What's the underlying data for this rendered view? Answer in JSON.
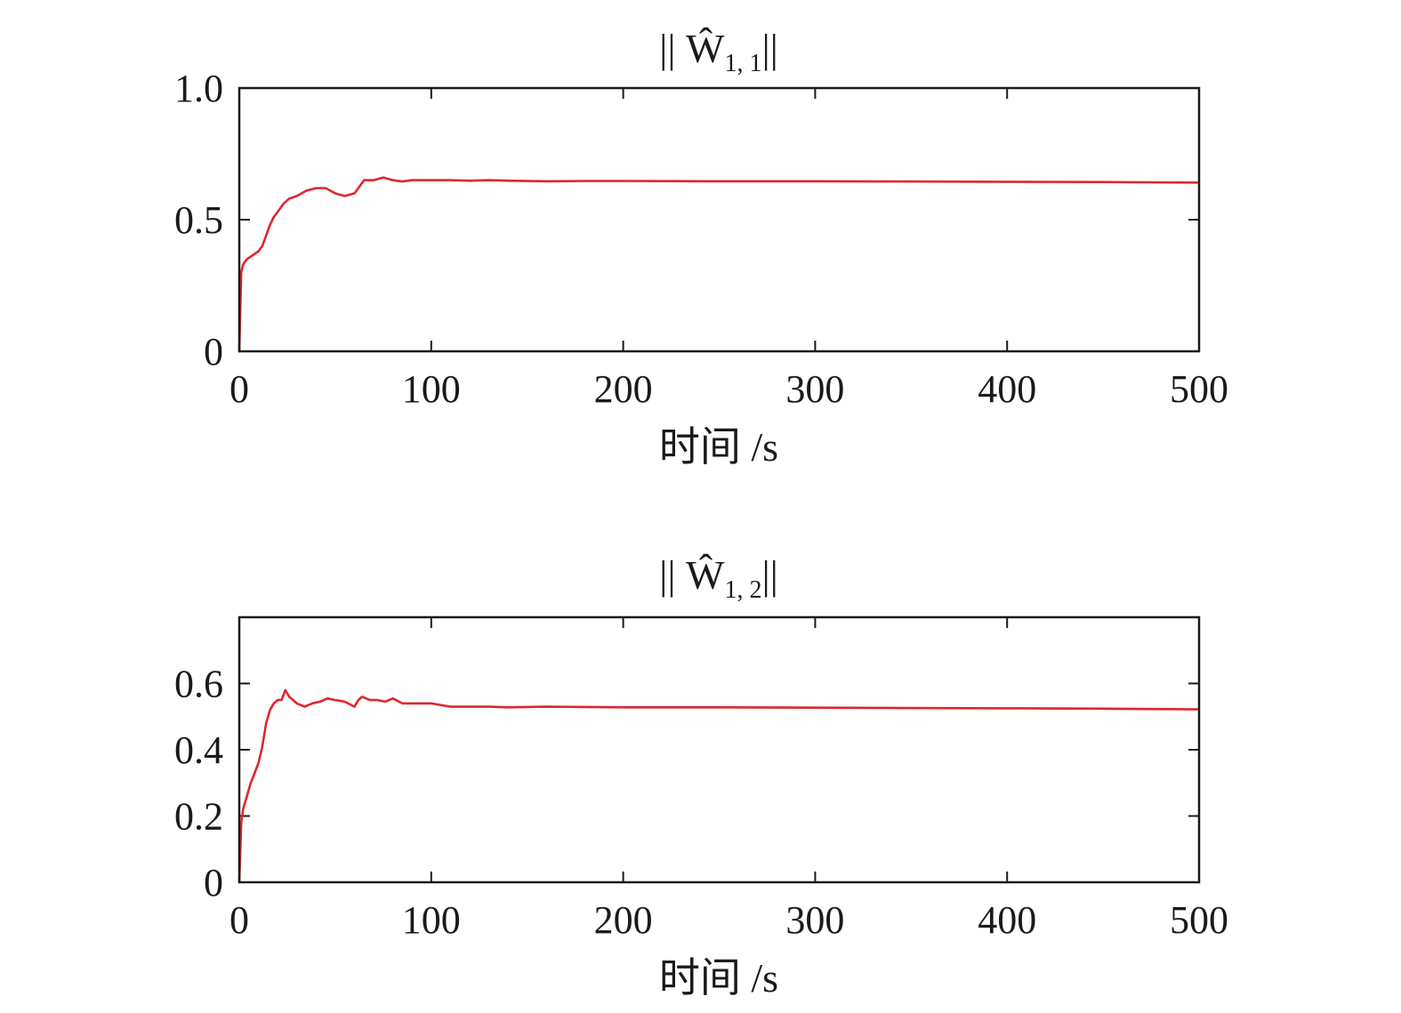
{
  "chart_data": [
    {
      "type": "line",
      "title_main": "|| Ŵ",
      "title_sub": "1, 1",
      "title_end": "||",
      "xlabel": "时间 /s",
      "ylabel": "",
      "xlim": [
        0,
        500
      ],
      "ylim": [
        0,
        1.0
      ],
      "xticks": [
        0,
        100,
        200,
        300,
        400,
        500
      ],
      "xtick_labels": [
        "0",
        "100",
        "200",
        "300",
        "400",
        "500"
      ],
      "yticks": [
        0,
        0.5,
        1.0
      ],
      "ytick_labels": [
        "0",
        "0.5",
        "1.0"
      ],
      "grid": false,
      "series": [
        {
          "color": "#e0262b",
          "x": [
            0,
            1,
            2,
            4,
            6,
            8,
            10,
            12,
            14,
            16,
            18,
            20,
            23,
            26,
            30,
            35,
            40,
            45,
            50,
            55,
            60,
            63,
            65,
            70,
            75,
            80,
            85,
            90,
            95,
            100,
            110,
            120,
            130,
            140,
            160,
            180,
            200,
            250,
            300,
            350,
            400,
            450,
            500
          ],
          "y": [
            0,
            0.3,
            0.33,
            0.35,
            0.36,
            0.37,
            0.38,
            0.4,
            0.44,
            0.48,
            0.51,
            0.53,
            0.56,
            0.58,
            0.59,
            0.61,
            0.62,
            0.62,
            0.6,
            0.59,
            0.6,
            0.63,
            0.65,
            0.65,
            0.66,
            0.65,
            0.645,
            0.65,
            0.65,
            0.65,
            0.65,
            0.648,
            0.65,
            0.648,
            0.646,
            0.647,
            0.647,
            0.646,
            0.646,
            0.645,
            0.644,
            0.643,
            0.641
          ]
        }
      ]
    },
    {
      "type": "line",
      "title_main": "|| Ŵ",
      "title_sub": "1, 2",
      "title_end": "||",
      "xlabel": "时间 /s",
      "ylabel": "",
      "xlim": [
        0,
        500
      ],
      "ylim": [
        0,
        0.8
      ],
      "xticks": [
        0,
        100,
        200,
        300,
        400,
        500
      ],
      "xtick_labels": [
        "0",
        "100",
        "200",
        "300",
        "400",
        "500"
      ],
      "yticks": [
        0,
        0.2,
        0.4,
        0.6
      ],
      "ytick_labels": [
        "0",
        "0.2",
        "0.4",
        "0.6"
      ],
      "grid": false,
      "series": [
        {
          "color": "#e0262b",
          "x": [
            0,
            1,
            2,
            4,
            6,
            8,
            10,
            12,
            14,
            16,
            18,
            20,
            22,
            24,
            26,
            28,
            30,
            34,
            38,
            42,
            46,
            50,
            55,
            60,
            62,
            64,
            68,
            72,
            76,
            80,
            85,
            90,
            100,
            110,
            120,
            130,
            140,
            160,
            180,
            200,
            250,
            300,
            350,
            400,
            450,
            500
          ],
          "y": [
            0,
            0.18,
            0.22,
            0.26,
            0.3,
            0.33,
            0.36,
            0.41,
            0.48,
            0.52,
            0.54,
            0.55,
            0.55,
            0.58,
            0.56,
            0.55,
            0.54,
            0.53,
            0.54,
            0.545,
            0.555,
            0.55,
            0.545,
            0.53,
            0.55,
            0.56,
            0.55,
            0.55,
            0.545,
            0.555,
            0.54,
            0.54,
            0.54,
            0.53,
            0.53,
            0.53,
            0.528,
            0.53,
            0.529,
            0.528,
            0.528,
            0.527,
            0.526,
            0.525,
            0.524,
            0.522
          ]
        }
      ]
    }
  ]
}
